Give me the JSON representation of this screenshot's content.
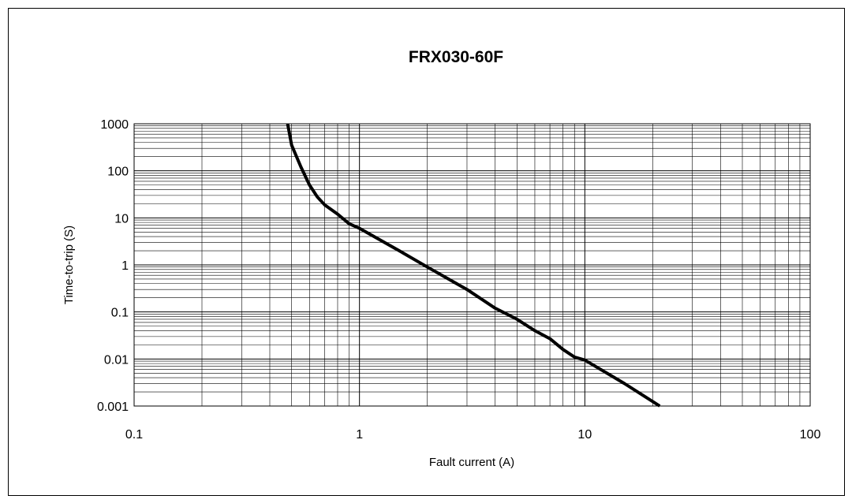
{
  "chart_data": {
    "type": "line",
    "title": "FRX030-60F",
    "xlabel": "Fault current (A)",
    "ylabel": "Time-to-trip (S)",
    "x_scale": "log",
    "y_scale": "log",
    "xlim": [
      0.1,
      100
    ],
    "ylim": [
      0.001,
      1000
    ],
    "x_ticks": [
      "0.1",
      "1",
      "10",
      "100"
    ],
    "y_ticks": [
      "1000",
      "100",
      "10",
      "1",
      "0.1",
      "0.01",
      "0.001"
    ],
    "grid": true,
    "legend": "none",
    "series": [
      {
        "color": "#000000",
        "x": [
          0.48,
          0.5,
          0.55,
          0.6,
          0.65,
          0.7,
          0.8,
          0.9,
          1.0,
          1.5,
          2.0,
          3.0,
          4.0,
          5.0,
          6.0,
          7.0,
          8.0,
          9.0,
          10.0,
          15.0,
          21.5
        ],
        "y": [
          1000,
          350,
          120,
          50,
          28,
          19,
          12,
          7.5,
          6,
          2.0,
          0.9,
          0.3,
          0.12,
          0.07,
          0.04,
          0.027,
          0.016,
          0.011,
          0.0095,
          0.003,
          0.001
        ]
      }
    ]
  }
}
